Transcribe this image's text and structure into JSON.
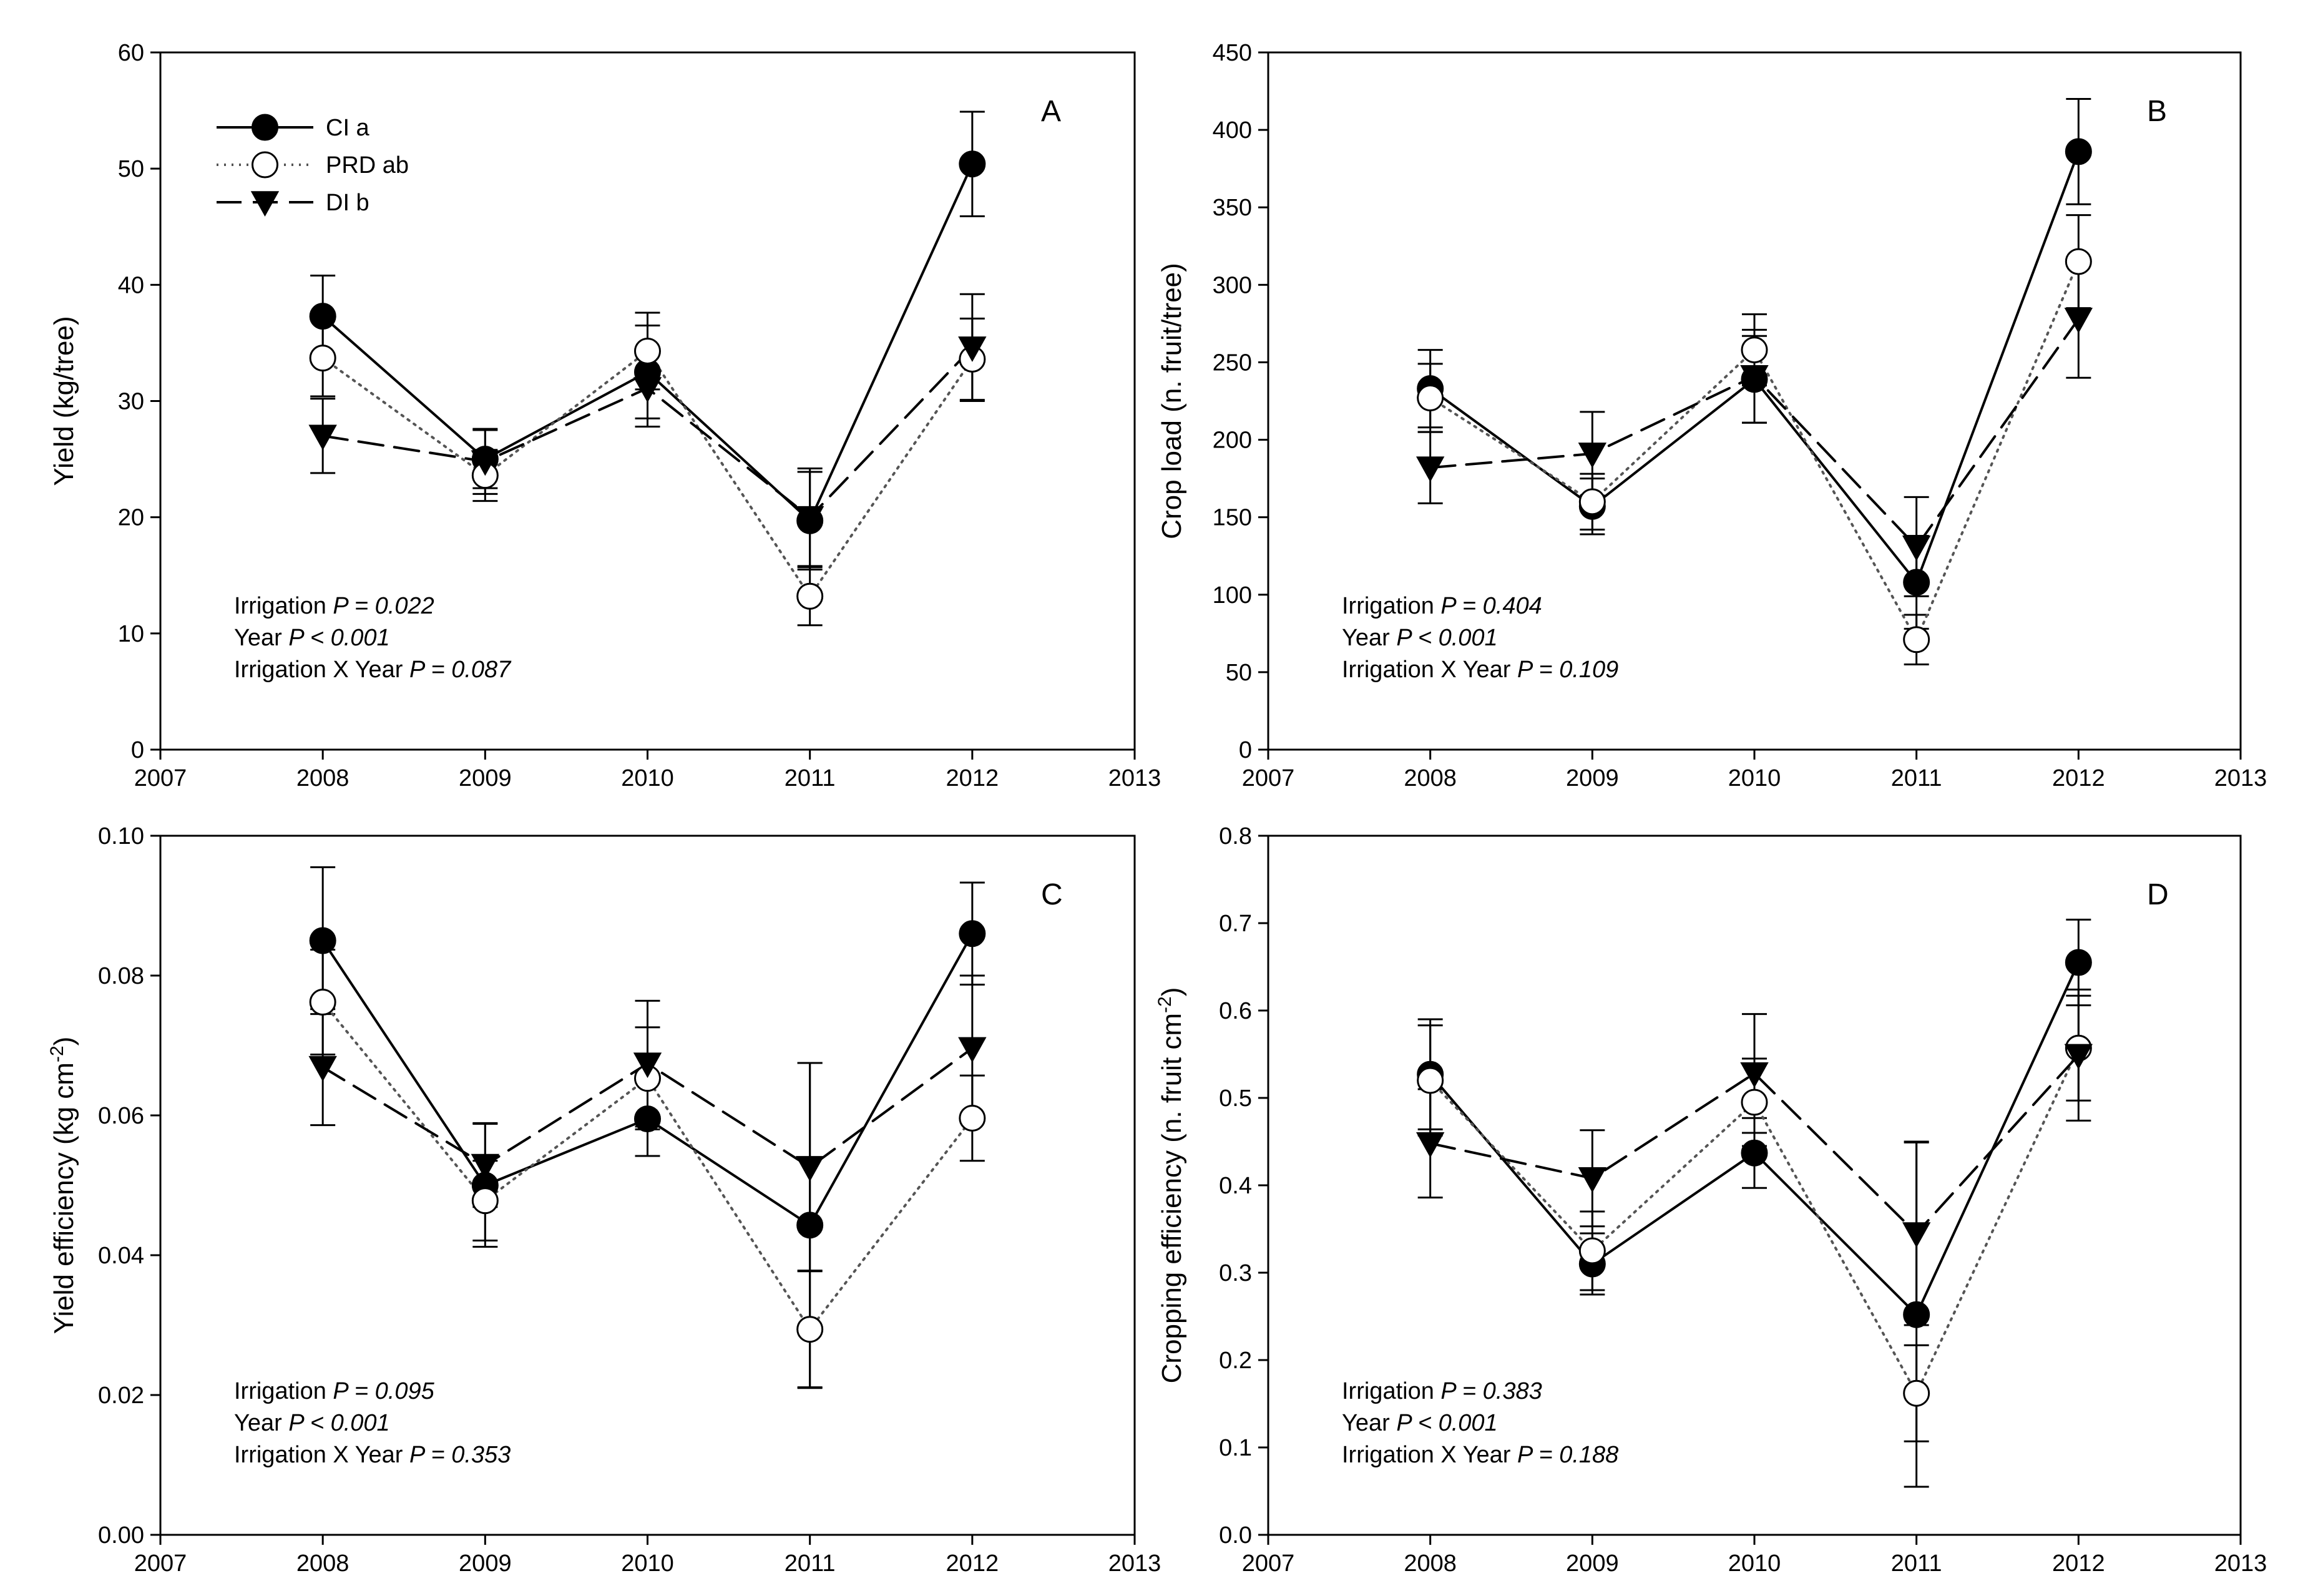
{
  "chart_data": [
    {
      "type": "line",
      "panel_label": "A",
      "ylabel": "Yield (kg/tree)",
      "xlabel": "",
      "xlim": [
        2007,
        2013
      ],
      "xticks": [
        "2007",
        "2008",
        "2009",
        "2010",
        "2011",
        "2012",
        "2013"
      ],
      "ylim": [
        0,
        60
      ],
      "yticks": [
        "0",
        "10",
        "20",
        "30",
        "40",
        "50",
        "60"
      ],
      "x": [
        2008,
        2009,
        2010,
        2011,
        2012
      ],
      "legend": {
        "placement": "top-left",
        "visible": true
      },
      "series": [
        {
          "name": "CI a",
          "marker": "filled-circle",
          "line": "solid",
          "values": [
            37.3,
            25.0,
            32.5,
            19.7,
            50.4
          ],
          "errors": [
            3.5,
            2.5,
            4.0,
            4.2,
            4.5
          ]
        },
        {
          "name": "PRD ab",
          "marker": "open-circle",
          "line": "dotted",
          "values": [
            33.7,
            23.6,
            34.3,
            13.2,
            33.6
          ],
          "errors": [
            3.3,
            2.2,
            3.3,
            2.5,
            3.5
          ]
        },
        {
          "name": "DI b",
          "marker": "filled-triangle-down",
          "line": "dashed",
          "values": [
            27.0,
            24.8,
            31.1,
            20.0,
            34.6
          ],
          "errors": [
            3.2,
            2.8,
            3.3,
            4.2,
            4.6
          ]
        }
      ],
      "annotation": [
        {
          "label": "Irrigation ",
          "value": "P = 0.022"
        },
        {
          "label": "Year ",
          "value": "P < 0.001"
        },
        {
          "label": "Irrigation X Year ",
          "value": "P = 0.087"
        }
      ]
    },
    {
      "type": "line",
      "panel_label": "B",
      "ylabel": "Crop load (n. fruit/tree)",
      "xlabel": "",
      "xlim": [
        2007,
        2013
      ],
      "xticks": [
        "2007",
        "2008",
        "2009",
        "2010",
        "2011",
        "2012",
        "2013"
      ],
      "ylim": [
        0,
        450
      ],
      "yticks": [
        "0",
        "50",
        "100",
        "150",
        "200",
        "250",
        "300",
        "350",
        "400",
        "450"
      ],
      "x": [
        2008,
        2009,
        2010,
        2011,
        2012
      ],
      "legend": {
        "visible": false
      },
      "series": [
        {
          "name": "CI a",
          "marker": "filled-circle",
          "line": "solid",
          "values": [
            233,
            157,
            239,
            108,
            386
          ],
          "errors": [
            25,
            18,
            28,
            30,
            34
          ]
        },
        {
          "name": "PRD ab",
          "marker": "open-circle",
          "line": "dotted",
          "values": [
            227,
            160,
            258,
            71,
            315
          ],
          "errors": [
            22,
            18,
            23,
            16,
            30
          ]
        },
        {
          "name": "DI b",
          "marker": "filled-triangle-down",
          "line": "dashed",
          "values": [
            182,
            191,
            241,
            131,
            278
          ],
          "errors": [
            23,
            27,
            30,
            32,
            38
          ]
        }
      ],
      "annotation": [
        {
          "label": "Irrigation ",
          "value": "P = 0.404"
        },
        {
          "label": "Year ",
          "value": "P < 0.001"
        },
        {
          "label": "Irrigation X Year ",
          "value": "P = 0.109"
        }
      ]
    },
    {
      "type": "line",
      "panel_label": "C",
      "ylabel": "Yield efficiency (kg cm",
      "ylabel_sup": "-2",
      "ylabel_end": ")",
      "xlabel": "",
      "xlim": [
        2007,
        2013
      ],
      "xticks": [
        "2007",
        "2008",
        "2009",
        "2010",
        "2011",
        "2012",
        "2013"
      ],
      "ylim": [
        0,
        0.1
      ],
      "yticks": [
        "0.00",
        "0.02",
        "0.04",
        "0.06",
        "0.08",
        "0.10"
      ],
      "x": [
        2008,
        2009,
        2010,
        2011,
        2012
      ],
      "legend": {
        "visible": false
      },
      "series": [
        {
          "name": "CI a",
          "marker": "filled-circle",
          "line": "solid",
          "values": [
            0.085,
            0.05,
            0.0595,
            0.0443,
            0.086
          ],
          "errors": [
            0.0105,
            0.0088,
            0.0053,
            0.0232,
            0.0073
          ]
        },
        {
          "name": "PRD ab",
          "marker": "open-circle",
          "line": "dotted",
          "values": [
            0.0762,
            0.0478,
            0.0653,
            0.0294,
            0.0596
          ],
          "errors": [
            0.0075,
            0.0057,
            0.0073,
            0.0084,
            0.0061
          ]
        },
        {
          "name": "DI b",
          "marker": "filled-triangle-down",
          "line": "dashed",
          "values": [
            0.0669,
            0.0529,
            0.0674,
            0.0526,
            0.0696
          ],
          "errors": [
            0.0083,
            0.006,
            0.009,
            0.0149,
            0.0104
          ]
        }
      ],
      "annotation": [
        {
          "label": "Irrigation ",
          "value": "P = 0.095"
        },
        {
          "label": "Year ",
          "value": "P < 0.001"
        },
        {
          "label": "Irrigation X Year ",
          "value": "P = 0.353"
        }
      ]
    },
    {
      "type": "line",
      "panel_label": "D",
      "ylabel": "Cropping efficiency (n. fruit cm",
      "ylabel_sup": "-2",
      "ylabel_end": ")",
      "xlabel": "",
      "xlim": [
        2007,
        2013
      ],
      "xticks": [
        "2007",
        "2008",
        "2009",
        "2010",
        "2011",
        "2012",
        "2013"
      ],
      "ylim": [
        0,
        0.8
      ],
      "yticks": [
        "0.0",
        "0.1",
        "0.2",
        "0.3",
        "0.4",
        "0.5",
        "0.6",
        "0.7",
        "0.8"
      ],
      "x": [
        2008,
        2009,
        2010,
        2011,
        2012
      ],
      "legend": {
        "visible": false
      },
      "series": [
        {
          "name": "CI a",
          "marker": "filled-circle",
          "line": "solid",
          "values": [
            0.527,
            0.31,
            0.437,
            0.252,
            0.655
          ],
          "errors": [
            0.063,
            0.035,
            0.04,
            0.197,
            0.049
          ]
        },
        {
          "name": "PRD ab",
          "marker": "open-circle",
          "line": "dotted",
          "values": [
            0.52,
            0.325,
            0.495,
            0.162,
            0.557
          ],
          "errors": [
            0.063,
            0.045,
            0.05,
            0.055,
            0.06
          ]
        },
        {
          "name": "DI b",
          "marker": "filled-triangle-down",
          "line": "dashed",
          "values": [
            0.448,
            0.408,
            0.528,
            0.345,
            0.549
          ],
          "errors": [
            0.062,
            0.055,
            0.068,
            0.105,
            0.075
          ]
        }
      ],
      "annotation": [
        {
          "label": "Irrigation ",
          "value": "P = 0.383"
        },
        {
          "label": "Year ",
          "value": "P < 0.001"
        },
        {
          "label": "Irrigation X Year ",
          "value": "P = 0.188"
        }
      ]
    }
  ]
}
